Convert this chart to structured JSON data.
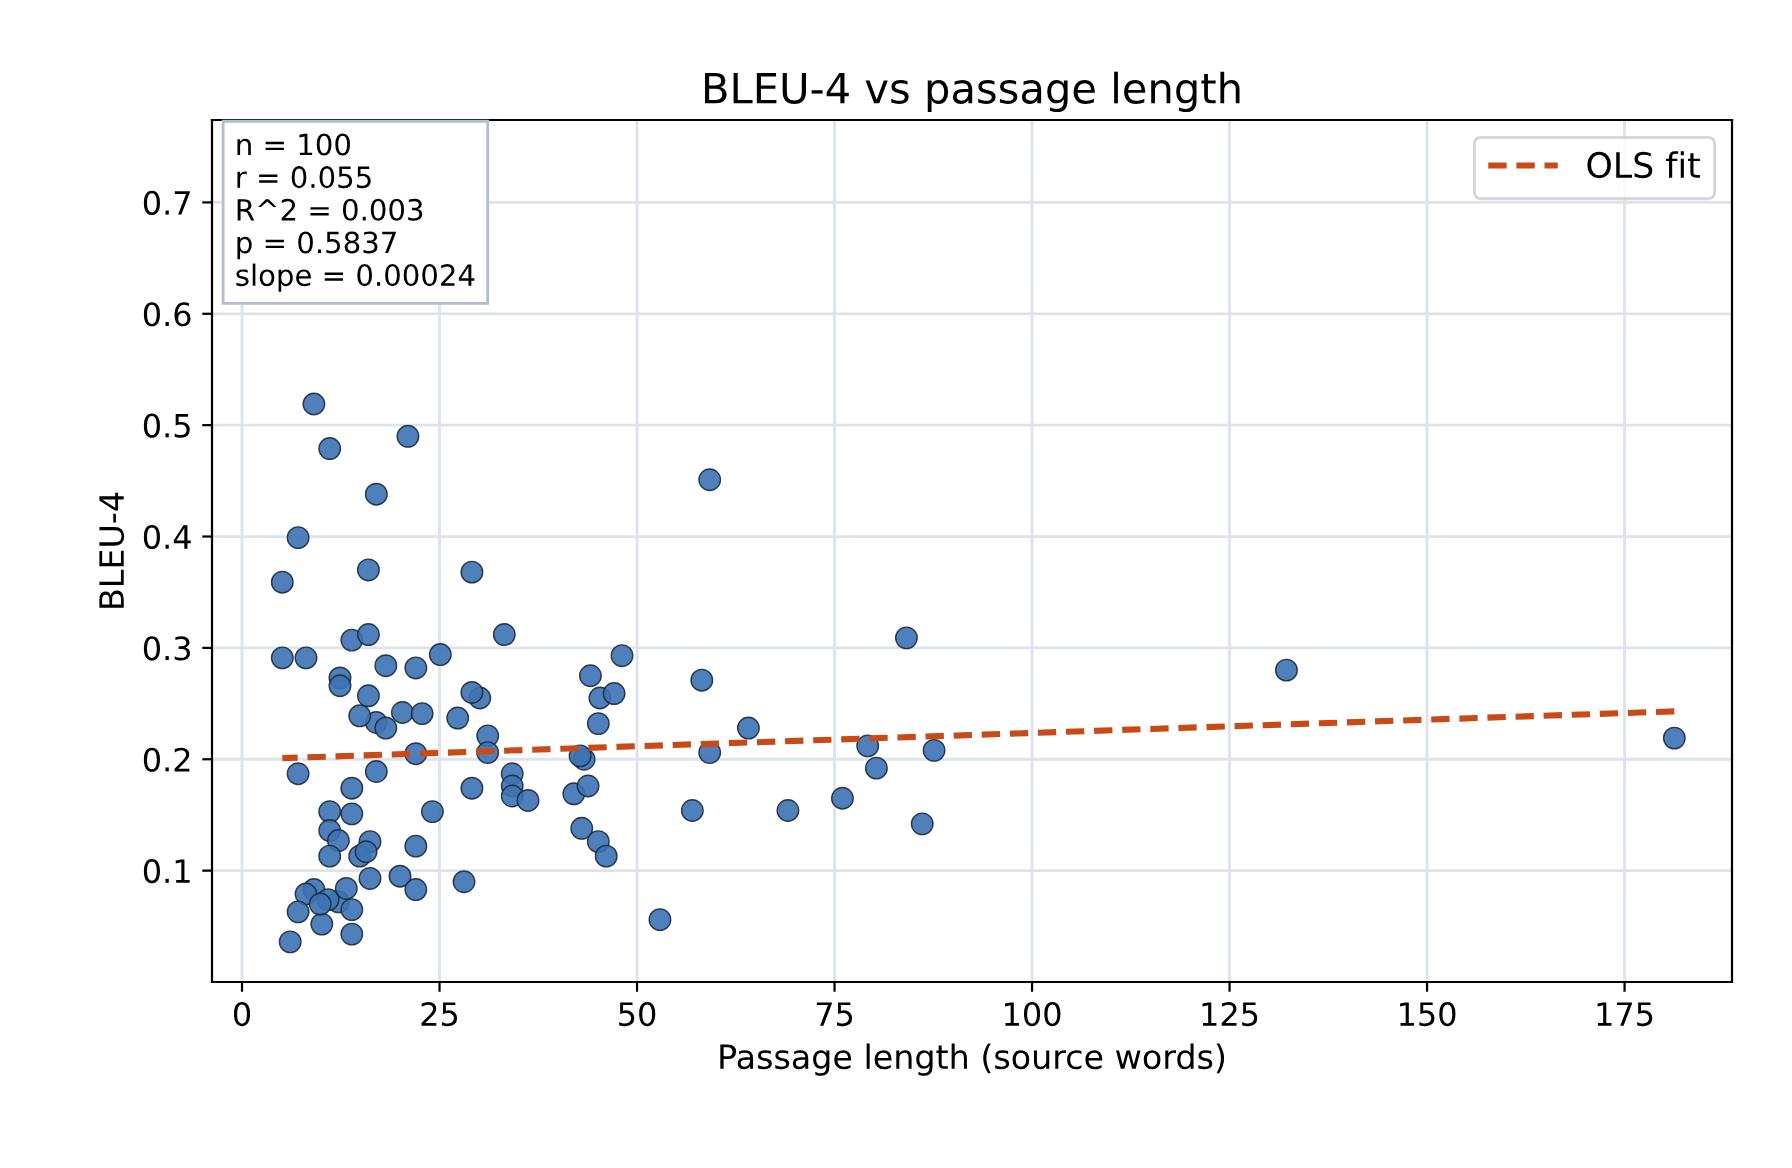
{
  "chart_data": {
    "type": "scatter",
    "title": "BLEU-4 vs passage length",
    "xlabel": "Passage length (source words)",
    "ylabel": "BLEU-4",
    "xlim": [
      -3.8,
      188.6
    ],
    "ylim": [
      0.0,
      0.774
    ],
    "xticks": [
      0,
      25,
      50,
      75,
      100,
      125,
      150,
      175
    ],
    "yticks": [
      0.1,
      0.2,
      0.3,
      0.4,
      0.5,
      0.6,
      0.7
    ],
    "grid": true,
    "legend": "top right",
    "annotations": [
      "n = 100\nr = 0.055\nR^2 = 0.003\np = 0.5837\nslope = 0.00024"
    ],
    "series": [
      {
        "color": "#3d72b4",
        "marker": "circle",
        "x": [
          9.1,
          11.1,
          21.0,
          17.0,
          7.1,
          59.2,
          5.1,
          16.0,
          29.1,
          33.2,
          84.1,
          132.2,
          181.3,
          13.9,
          16.0,
          5.1,
          8.1,
          12.4,
          12.4,
          18.2,
          22.0,
          25.1,
          48.1,
          58.2,
          44.1,
          45.3,
          47.1,
          45.1,
          16.0,
          17.0,
          18.2,
          20.3,
          22.8,
          14.9,
          27.3,
          30.1,
          29.1,
          31.1,
          31.1,
          22.0,
          7.1,
          17.0,
          64.1,
          59.2,
          87.6,
          79.2,
          80.3,
          13.9,
          34.2,
          34.2,
          34.2,
          36.2,
          29.1,
          42.0,
          43.8,
          43.3,
          42.8,
          43.0,
          45.1,
          46.1,
          57.0,
          69.1,
          76.0,
          86.1,
          24.1,
          22.0,
          20.0,
          22.0,
          28.1,
          52.9,
          11.1,
          13.9,
          11.1,
          12.2,
          16.2,
          11.1,
          14.9,
          15.7,
          16.2,
          9.1,
          8.1,
          7.1,
          10.1,
          12.2,
          13.9,
          13.9,
          6.1,
          10.9,
          13.2,
          9.9
        ],
        "values": [
          0.519,
          0.479,
          0.49,
          0.438,
          0.399,
          0.451,
          0.359,
          0.37,
          0.368,
          0.312,
          0.309,
          0.28,
          0.219,
          0.307,
          0.312,
          0.291,
          0.291,
          0.273,
          0.266,
          0.284,
          0.282,
          0.294,
          0.293,
          0.271,
          0.275,
          0.255,
          0.259,
          0.232,
          0.257,
          0.233,
          0.228,
          0.242,
          0.241,
          0.239,
          0.237,
          0.255,
          0.26,
          0.221,
          0.206,
          0.205,
          0.187,
          0.189,
          0.228,
          0.206,
          0.208,
          0.212,
          0.192,
          0.174,
          0.187,
          0.176,
          0.167,
          0.163,
          0.174,
          0.169,
          0.176,
          0.2,
          0.203,
          0.138,
          0.126,
          0.113,
          0.154,
          0.154,
          0.165,
          0.142,
          0.153,
          0.122,
          0.095,
          0.083,
          0.09,
          0.056,
          0.153,
          0.151,
          0.136,
          0.127,
          0.126,
          0.113,
          0.113,
          0.117,
          0.093,
          0.083,
          0.079,
          0.063,
          0.052,
          0.072,
          0.065,
          0.043,
          0.036,
          0.074,
          0.084,
          0.07
        ]
      },
      {
        "type": "line",
        "name": "OLS fit",
        "color": "#c84a17",
        "line_style": "dashed",
        "marker": "none",
        "x": [
          5.1,
          181.3
        ],
        "values": [
          0.201,
          0.243
        ]
      }
    ]
  }
}
